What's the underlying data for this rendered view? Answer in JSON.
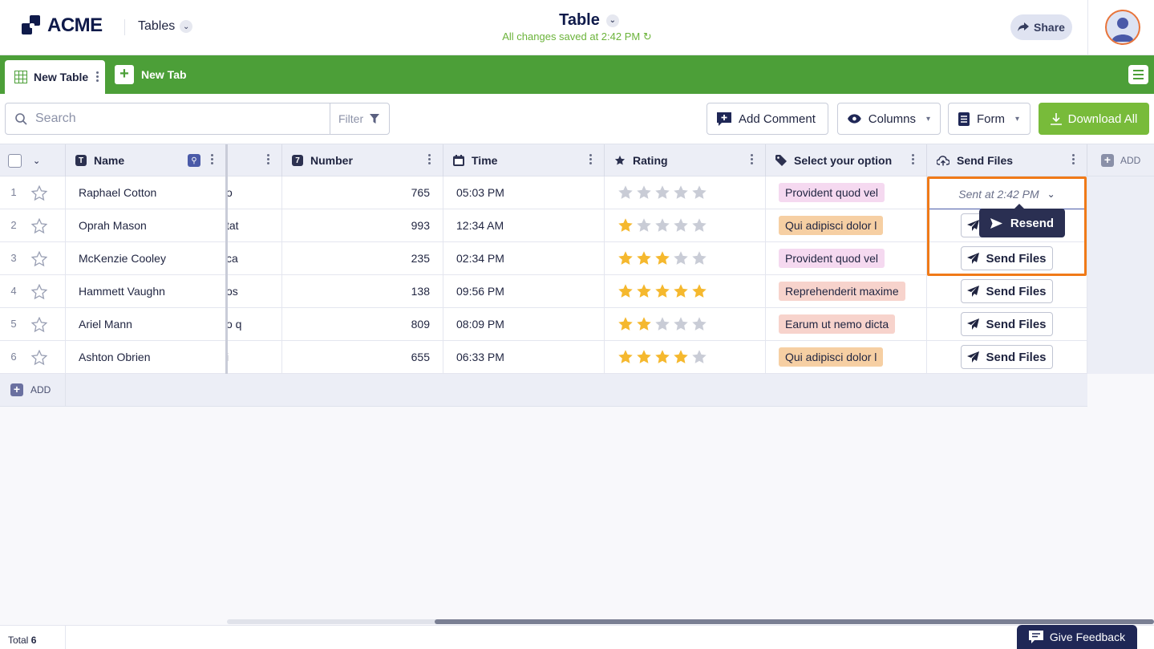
{
  "header": {
    "logo_text": "ACME",
    "tables_menu": "Tables",
    "doc_title": "Table",
    "saved_status": "All changes saved at 2:42 PM",
    "share_label": "Share"
  },
  "tabs": {
    "active": "New Table",
    "new_tab": "New Tab"
  },
  "toolbar": {
    "search_placeholder": "Search",
    "filter_label": "Filter",
    "add_comment": "Add Comment",
    "columns": "Columns",
    "form": "Form",
    "download_all": "Download All"
  },
  "columns": {
    "name": "Name",
    "number": "Number",
    "time": "Time",
    "rating": "Rating",
    "select": "Select your option",
    "send_files": "Send Files",
    "add": "ADD"
  },
  "rows": [
    {
      "num": "1",
      "name": "Raphael Cotton",
      "partial": "o",
      "number": "765",
      "time": "05:03 PM",
      "rating": 0,
      "option": "Provident quod vel"
    },
    {
      "num": "2",
      "name": "Oprah Mason",
      "partial": "tat",
      "number": "993",
      "time": "12:34 AM",
      "rating": 1,
      "option": "Qui adipisci dolor l"
    },
    {
      "num": "3",
      "name": "McKenzie Cooley",
      "partial": "ca",
      "number": "235",
      "time": "02:34 PM",
      "rating": 3,
      "option": "Provident quod vel"
    },
    {
      "num": "4",
      "name": "Hammett Vaughn",
      "partial": "os",
      "number": "138",
      "time": "09:56 PM",
      "rating": 5,
      "option": "Reprehenderit maxime"
    },
    {
      "num": "5",
      "name": "Ariel Mann",
      "partial": "o q",
      "number": "809",
      "time": "08:09 PM",
      "rating": 2,
      "option": "Earum ut nemo dicta"
    },
    {
      "num": "6",
      "name": "Ashton Obrien",
      "partial": "i",
      "number": "655",
      "time": "06:33 PM",
      "rating": 4,
      "option": "Qui adipisci dolor l"
    }
  ],
  "send_files_label": "Send Files",
  "sent_status": "Sent at 2:42 PM",
  "resend_label": "Resend",
  "add_row_label": "ADD",
  "footer": {
    "total_label": "Total",
    "total_count": "6",
    "feedback": "Give Feedback"
  },
  "colors": {
    "brand_green": "#4c9f38",
    "download_green": "#78bb3a",
    "highlight_orange": "#f07a18",
    "star_gold": "#f5b82e",
    "tag_pink": "#f5d9f0",
    "tag_orange": "#f6cfa3",
    "tag_salmon": "#f7d3cc"
  }
}
